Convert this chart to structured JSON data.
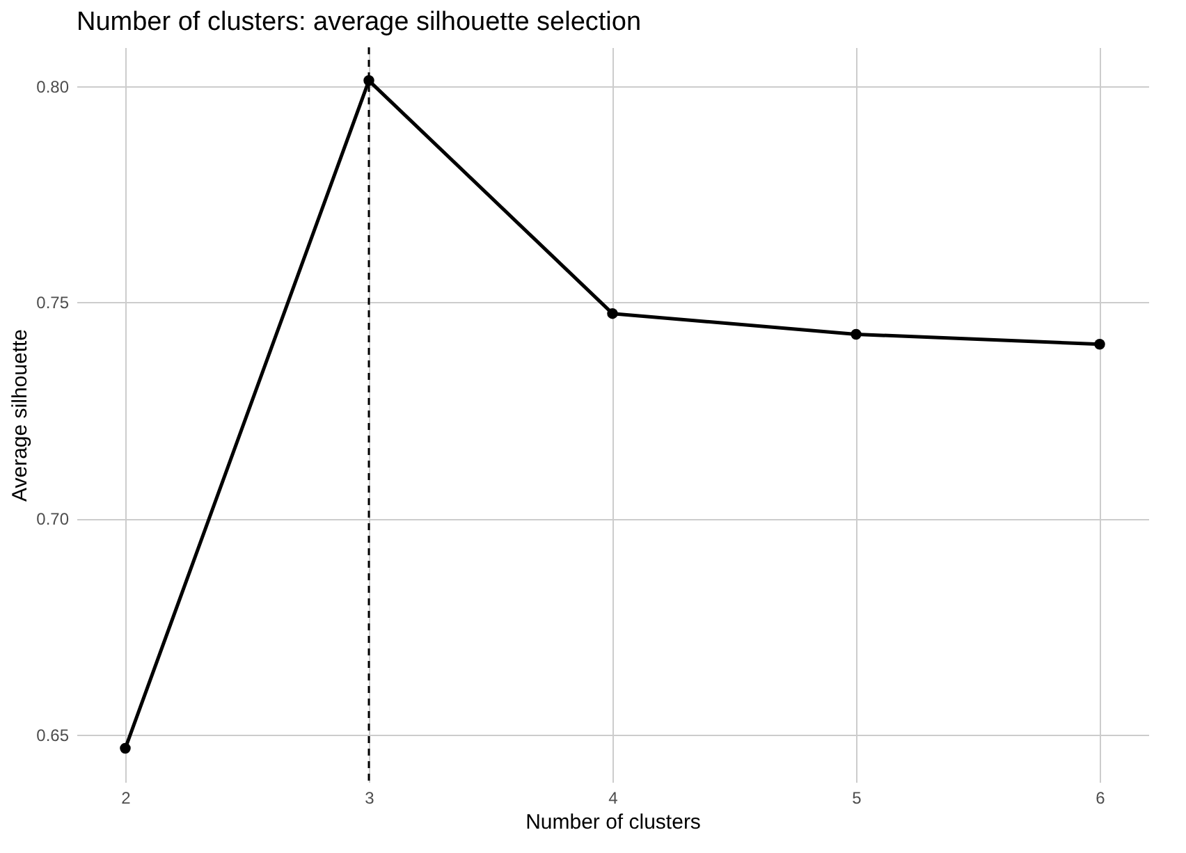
{
  "chart_data": {
    "type": "line",
    "title": "Number of clusters: average silhouette selection",
    "xlabel": "Number of clusters",
    "ylabel": "Average silhouette",
    "x": [
      2,
      3,
      4,
      5,
      6
    ],
    "series": [
      {
        "color": "#000000",
        "values": [
          0.6468,
          0.8013,
          0.7474,
          0.7426,
          0.7403
        ]
      }
    ],
    "xlim": [
      1.8,
      6.2
    ],
    "xticks": [
      2,
      3,
      4,
      5,
      6
    ],
    "ylim": [
      0.639,
      0.809
    ],
    "yticks": [
      0.65,
      {
        "value": 0.7,
        "label": "0.70"
      },
      0.75,
      {
        "value": 0.8,
        "label": "0.80"
      }
    ],
    "ref_lines": [
      {
        "axis": "x",
        "value": 3,
        "color": "#000000",
        "line_style": "dashed"
      }
    ],
    "grid": true,
    "marker": "circle",
    "line_style": "solid"
  }
}
